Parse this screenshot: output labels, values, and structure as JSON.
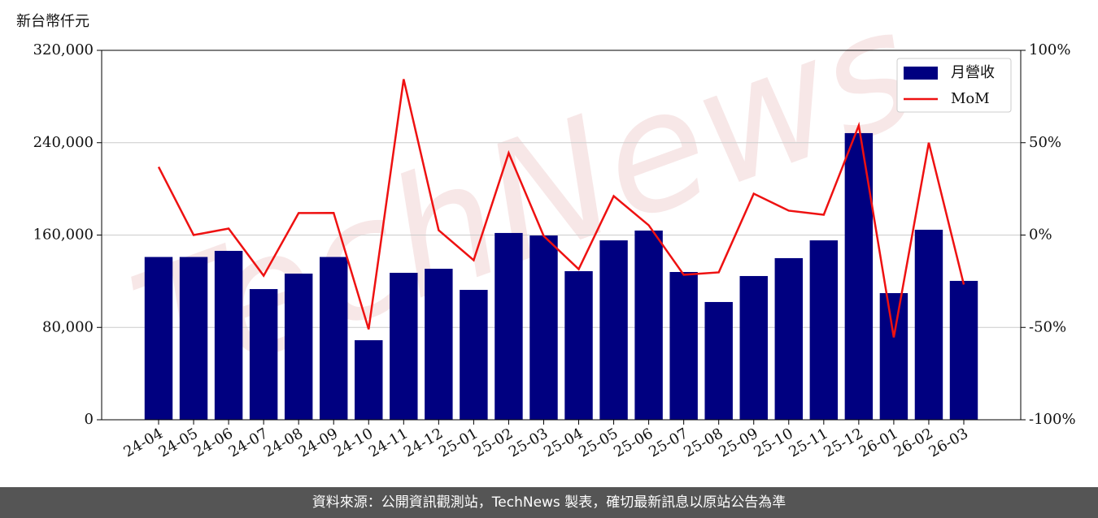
{
  "chart_data": {
    "type": "bar_line",
    "unit_label": "新台幣仟元",
    "watermark": "TechNews",
    "footer": "資料來源：公開資訊觀測站，TechNews 製表，確切最新訊息以原站公告為準",
    "categories": [
      "24-04",
      "24-05",
      "24-06",
      "24-07",
      "24-08",
      "24-09",
      "24-10",
      "24-11",
      "24-12",
      "25-01",
      "25-02",
      "25-03",
      "25-04",
      "25-05",
      "25-06",
      "25-07",
      "25-08",
      "25-09",
      "25-10",
      "25-11",
      "25-12",
      "26-01",
      "26-02",
      "26-03"
    ],
    "series": [
      {
        "name": "月營收",
        "type": "bar",
        "color": "#000080",
        "values": [
          141000,
          141000,
          146300,
          113200,
          126600,
          141000,
          68900,
          127300,
          130800,
          112500,
          161800,
          159600,
          128700,
          155400,
          163900,
          128000,
          102000,
          124500,
          140000,
          155400,
          248300,
          109700,
          164600,
          120300
        ]
      },
      {
        "name": "MoM",
        "type": "line",
        "color": "#ee1111",
        "axis": "y2",
        "values": [
          36.9,
          0,
          3.5,
          -22,
          11.9,
          12,
          -51,
          84.4,
          2.6,
          -13.6,
          44.4,
          -0.5,
          -18.5,
          21.1,
          5.3,
          -21.5,
          -20.2,
          22.4,
          13.2,
          11,
          59.3,
          -55.4,
          50,
          -26.8
        ]
      }
    ],
    "ylim": [
      0,
      320000
    ],
    "yticks": [
      0,
      {
        "value": 80000,
        "label": "80,000"
      },
      {
        "value": 160000,
        "label": "160,000"
      },
      {
        "value": 240000,
        "label": "240,000"
      },
      {
        "value": 320000,
        "label": "320,000"
      }
    ],
    "y2lim": [
      -100,
      100
    ],
    "y2ticks": [
      {
        "value": -100,
        "label": "-100%"
      },
      {
        "value": -50,
        "label": "-50%"
      },
      {
        "value": 0,
        "label": "0%"
      },
      {
        "value": 50,
        "label": "50%"
      },
      {
        "value": 100,
        "label": "100%"
      }
    ],
    "grid": true,
    "legend": "upper-right"
  }
}
